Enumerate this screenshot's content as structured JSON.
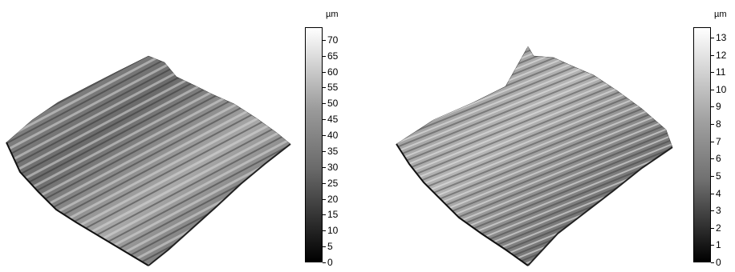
{
  "panels": [
    {
      "unit": "µm",
      "ticks": [
        "0",
        "5",
        "10",
        "15",
        "20",
        "25",
        "30",
        "35",
        "40",
        "45",
        "50",
        "55",
        "60",
        "65",
        "70"
      ],
      "max": 74
    },
    {
      "unit": "µm",
      "ticks": [
        "0",
        "1",
        "2",
        "3",
        "4",
        "5",
        "6",
        "7",
        "8",
        "9",
        "10",
        "11",
        "12",
        "13"
      ],
      "max": 13.6
    }
  ],
  "colors": {
    "dark": "#000000",
    "light": "#ffffff",
    "mid": "#8a8a8a"
  }
}
